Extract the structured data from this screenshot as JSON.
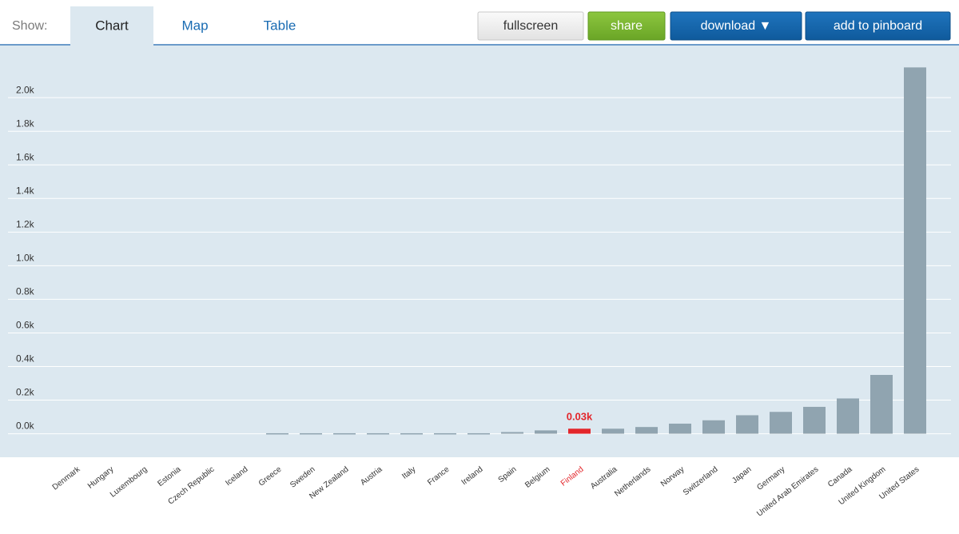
{
  "toolbar": {
    "show_label": "Show:",
    "tabs": [
      "Chart",
      "Map",
      "Table"
    ],
    "active_tab": 0,
    "buttons": [
      "fullscreen",
      "share",
      "download ▼",
      "add to pinboard"
    ]
  },
  "chart_data": {
    "type": "bar",
    "categories": [
      "Denmark",
      "Hungary",
      "Luxembourg",
      "Estonia",
      "Czech Republic",
      "Iceland",
      "Greece",
      "Sweden",
      "New Zealand",
      "Austria",
      "Italy",
      "France",
      "Ireland",
      "Spain",
      "Belgium",
      "Finland",
      "Australia",
      "Netherlands",
      "Norway",
      "Switzerland",
      "Japan",
      "Germany",
      "United Arab Emirates",
      "Canada",
      "United Kingdom",
      "United States"
    ],
    "values": [
      0,
      0,
      0,
      0,
      0,
      0,
      0.003,
      0.003,
      0.003,
      0.003,
      0.003,
      0.003,
      0.003,
      0.01,
      0.02,
      0.03,
      0.03,
      0.04,
      0.06,
      0.08,
      0.11,
      0.13,
      0.16,
      0.21,
      0.35,
      2.18
    ],
    "value_labels": [
      null,
      null,
      null,
      null,
      null,
      null,
      null,
      null,
      null,
      null,
      null,
      null,
      null,
      null,
      null,
      "0.03k",
      null,
      null,
      null,
      null,
      null,
      null,
      null,
      null,
      null,
      null
    ],
    "colors": [
      "#90a4b0",
      "#90a4b0",
      "#90a4b0",
      "#90a4b0",
      "#90a4b0",
      "#90a4b0",
      "#90a4b0",
      "#90a4b0",
      "#90a4b0",
      "#90a4b0",
      "#90a4b0",
      "#90a4b0",
      "#90a4b0",
      "#90a4b0",
      "#90a4b0",
      "#e3262b",
      "#90a4b0",
      "#90a4b0",
      "#90a4b0",
      "#90a4b0",
      "#90a4b0",
      "#90a4b0",
      "#90a4b0",
      "#90a4b0",
      "#90a4b0",
      "#90a4b0"
    ],
    "ylim": [
      -0.14,
      2.31
    ],
    "yticks": [
      {
        "value": 0,
        "label": "0.0k"
      },
      {
        "value": 0.2,
        "label": "0.2k"
      },
      {
        "value": 0.4,
        "label": "0.4k"
      },
      {
        "value": 0.6,
        "label": "0.6k"
      },
      {
        "value": 0.8,
        "label": "0.8k"
      },
      {
        "value": 1.0,
        "label": "1.0k"
      },
      {
        "value": 1.2,
        "label": "1.2k"
      },
      {
        "value": 1.4,
        "label": "1.4k"
      },
      {
        "value": 1.6,
        "label": "1.6k"
      },
      {
        "value": 1.8,
        "label": "1.8k"
      },
      {
        "value": 2.0,
        "label": "2.0k"
      }
    ],
    "grid": true
  }
}
